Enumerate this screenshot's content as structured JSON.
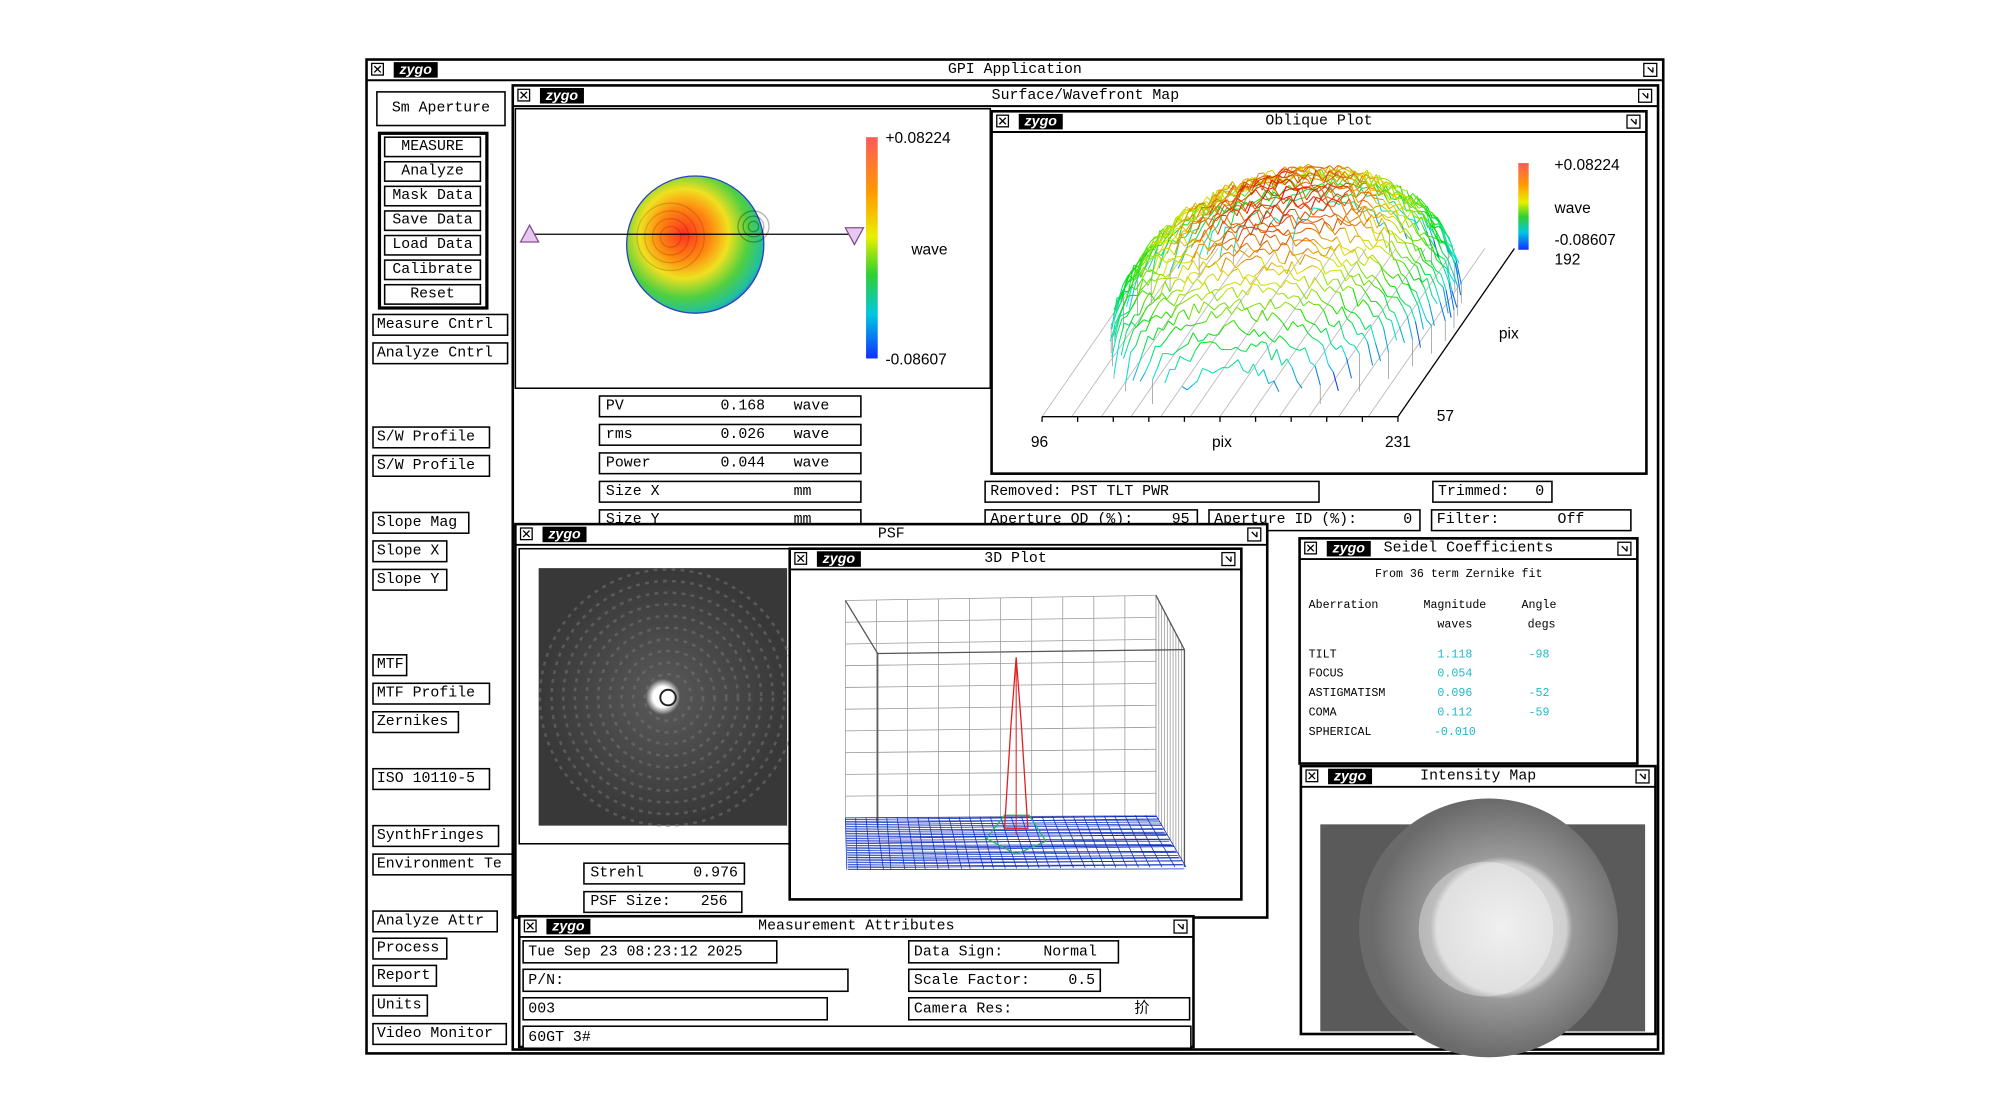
{
  "logo": "zygo",
  "main_window": {
    "title": "GPI Application"
  },
  "sidebar": {
    "top_button": "Sm Aperture",
    "measure_group": [
      "MEASURE",
      "Analyze",
      "Mask Data",
      "Save Data",
      "Load Data",
      "Calibrate",
      "Reset"
    ],
    "buttons": [
      "Measure Cntrl",
      "Analyze Cntrl",
      "S/W Profile",
      "S/W Profile",
      "Slope Mag",
      "Slope X",
      "Slope Y",
      "MTF",
      "MTF Profile",
      "Zernikes",
      "ISO 10110-5",
      "SynthFringes",
      "Environment Te",
      "Analyze Attr",
      "Process",
      "Report",
      "Units",
      "Video Monitor"
    ]
  },
  "surface_map": {
    "title": "Surface/Wavefront Map",
    "scale_max": "+0.08224",
    "scale_unit": "wave",
    "scale_min": "-0.08607",
    "results": [
      {
        "label": "PV",
        "value": "0.168",
        "unit": "wave"
      },
      {
        "label": "rms",
        "value": "0.026",
        "unit": "wave"
      },
      {
        "label": "Power",
        "value": "0.044",
        "unit": "wave"
      },
      {
        "label": "Size X",
        "unit": "mm"
      },
      {
        "label": "Size Y",
        "unit": "mm"
      }
    ],
    "settings": [
      {
        "label": "Removed:",
        "value": "PST TLT PWR"
      },
      {
        "label": "Trimmed:",
        "value": "0"
      },
      {
        "label": "Aperture OD (%):",
        "value": "95"
      },
      {
        "label": "Aperture ID (%):",
        "value": "0"
      },
      {
        "label": "Filter:",
        "value": "Off"
      }
    ]
  },
  "oblique_plot": {
    "title": "Oblique Plot",
    "scale_max": "+0.08224",
    "scale_unit": "wave",
    "scale_min": "-0.08607",
    "y_axis_max": "192",
    "y_axis_label": "pix",
    "y_axis_min": "57",
    "x_axis_min": "96",
    "x_axis_label": "pix",
    "x_axis_max": "231"
  },
  "psf": {
    "title": "PSF",
    "strehl": {
      "label": "Strehl",
      "value": "0.976"
    },
    "size": {
      "label": "PSF Size:",
      "value": "256"
    }
  },
  "plot_3d": {
    "title": "3D Plot"
  },
  "seidel": {
    "title": "Seidel Coefficients",
    "subtitle": "From 36 term Zernike fit",
    "headers": [
      "Aberration",
      "Magnitude",
      "Angle"
    ],
    "units": [
      "waves",
      "degs"
    ],
    "rows": [
      [
        "TILT",
        "1.118",
        "-98"
      ],
      [
        "FOCUS",
        "0.054"
      ],
      [
        "ASTIGMATISM",
        "0.096",
        "-52"
      ],
      [
        "COMA",
        "0.112",
        "-59"
      ],
      [
        "SPHERICAL",
        "-0.010"
      ]
    ]
  },
  "intensity_map": {
    "title": "Intensity Map"
  },
  "measurement_attributes": {
    "title": "Measurement Attributes",
    "date": "Tue Sep 23 08:23:12 2025",
    "part_number": "P/N:",
    "serial": "003",
    "note": "60GT 3#",
    "fields": [
      {
        "label": "Data Sign:",
        "value": "Normal"
      },
      {
        "label": "Scale Factor:",
        "value": "0.5"
      },
      {
        "label": "Camera Res:",
        "value": "扴"
      }
    ]
  }
}
